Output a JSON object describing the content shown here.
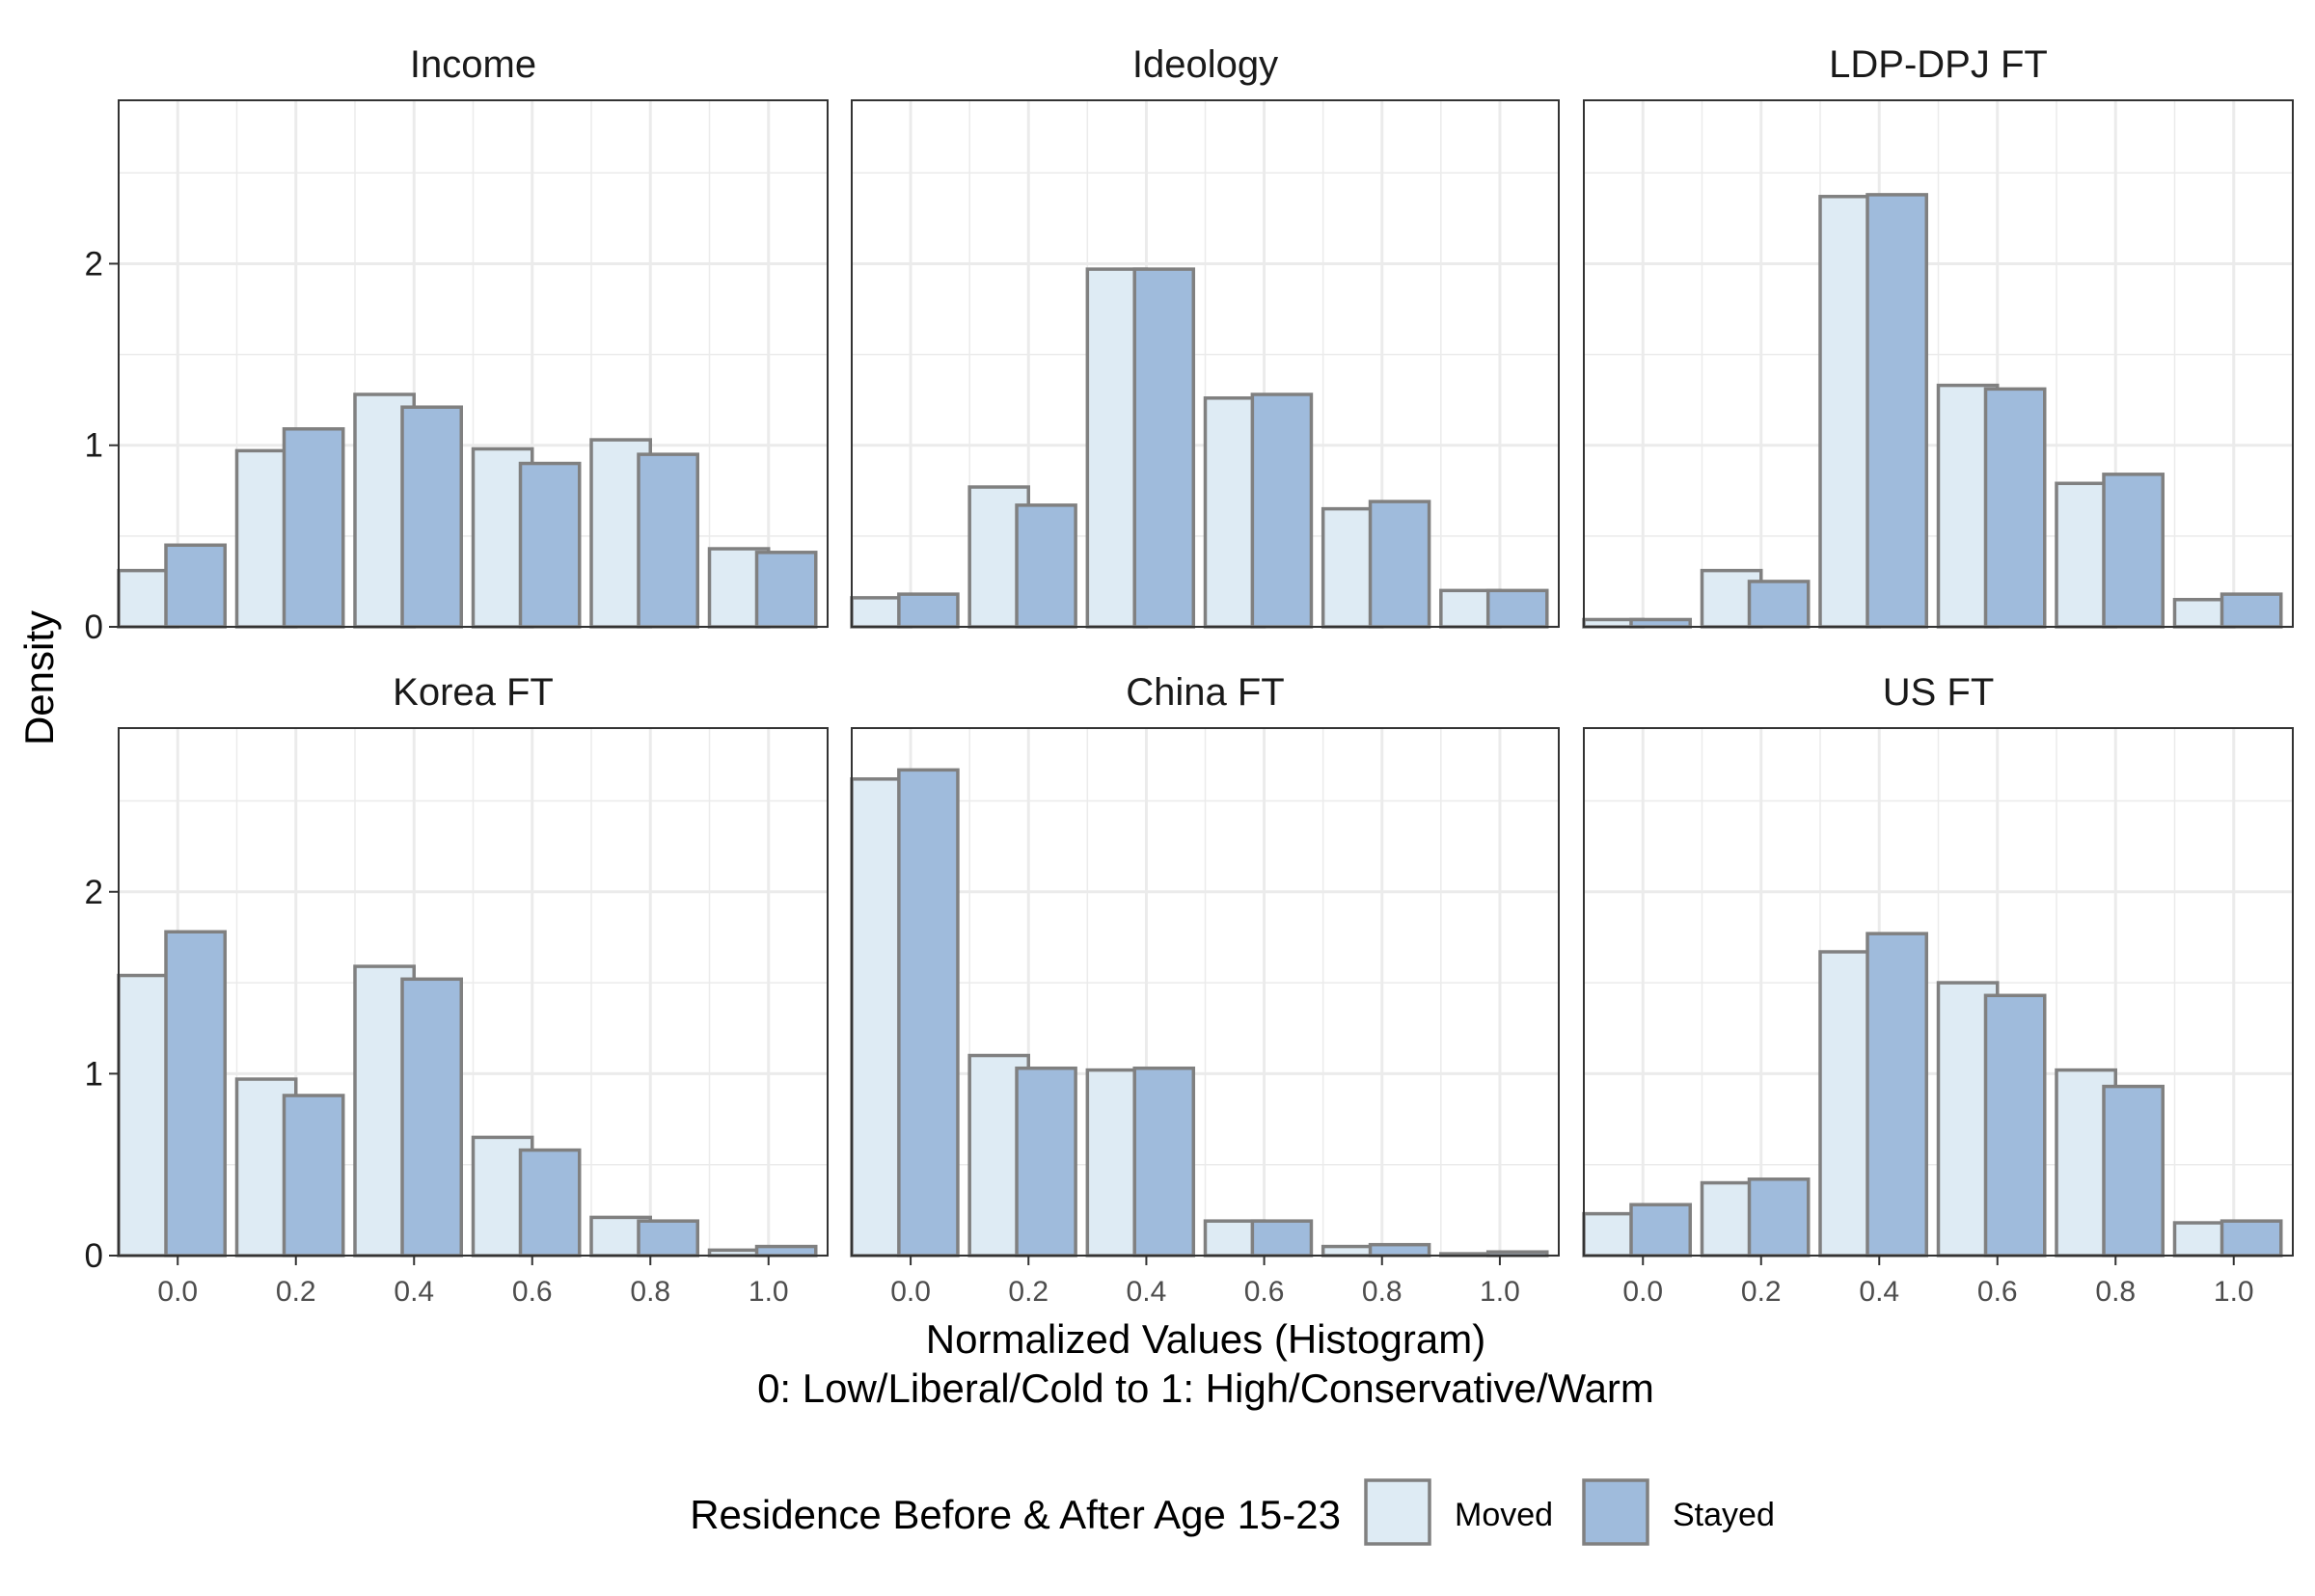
{
  "chart_data": {
    "type": "bar",
    "subtype": "faceted-histogram",
    "ylabel": "Density",
    "xlabel_lines": [
      "Normalized Values (Histogram)",
      "0: Low/Liberal/Cold to 1: High/Conservative/Warm"
    ],
    "x_ticks": [
      "0.0",
      "0.2",
      "0.4",
      "0.6",
      "0.8",
      "1.0"
    ],
    "y_ticks": [
      "0",
      "1",
      "2"
    ],
    "xlim": [
      -0.1,
      1.1
    ],
    "ylim": [
      0,
      2.9
    ],
    "grid": true,
    "legend": {
      "title": "Residence Before & After Age 15-23",
      "position": "bottom",
      "entries": [
        "Moved",
        "Stayed"
      ]
    },
    "colors": {
      "Moved": "#deebf4",
      "Stayed": "#9fbbdc",
      "bar_outline": "#808080"
    },
    "bin_centers": [
      0.0,
      0.2,
      0.4,
      0.6,
      0.8,
      1.0
    ],
    "panels": [
      {
        "title": "Income",
        "series": [
          {
            "name": "Moved",
            "values": [
              0.31,
              0.97,
              1.28,
              0.98,
              1.03,
              0.43
            ]
          },
          {
            "name": "Stayed",
            "values": [
              0.45,
              1.09,
              1.21,
              0.9,
              0.95,
              0.41
            ]
          }
        ]
      },
      {
        "title": "Ideology",
        "series": [
          {
            "name": "Moved",
            "values": [
              0.16,
              0.77,
              1.97,
              1.26,
              0.65,
              0.2
            ]
          },
          {
            "name": "Stayed",
            "values": [
              0.18,
              0.67,
              1.97,
              1.28,
              0.69,
              0.2
            ]
          }
        ]
      },
      {
        "title": "LDP-DPJ FT",
        "series": [
          {
            "name": "Moved",
            "values": [
              0.04,
              0.31,
              2.37,
              1.33,
              0.79,
              0.15
            ]
          },
          {
            "name": "Stayed",
            "values": [
              0.04,
              0.25,
              2.38,
              1.31,
              0.84,
              0.18
            ]
          }
        ]
      },
      {
        "title": "Korea FT",
        "series": [
          {
            "name": "Moved",
            "values": [
              1.54,
              0.97,
              1.59,
              0.65,
              0.21,
              0.03
            ]
          },
          {
            "name": "Stayed",
            "values": [
              1.78,
              0.88,
              1.52,
              0.58,
              0.19,
              0.05
            ]
          }
        ]
      },
      {
        "title": "China FT",
        "series": [
          {
            "name": "Moved",
            "values": [
              2.62,
              1.1,
              1.02,
              0.19,
              0.05,
              0.01
            ]
          },
          {
            "name": "Stayed",
            "values": [
              2.67,
              1.03,
              1.03,
              0.19,
              0.06,
              0.02
            ]
          }
        ]
      },
      {
        "title": "US FT",
        "series": [
          {
            "name": "Moved",
            "values": [
              0.23,
              0.4,
              1.67,
              1.5,
              1.02,
              0.18
            ]
          },
          {
            "name": "Stayed",
            "values": [
              0.28,
              0.42,
              1.77,
              1.43,
              0.93,
              0.19
            ]
          }
        ]
      }
    ]
  }
}
